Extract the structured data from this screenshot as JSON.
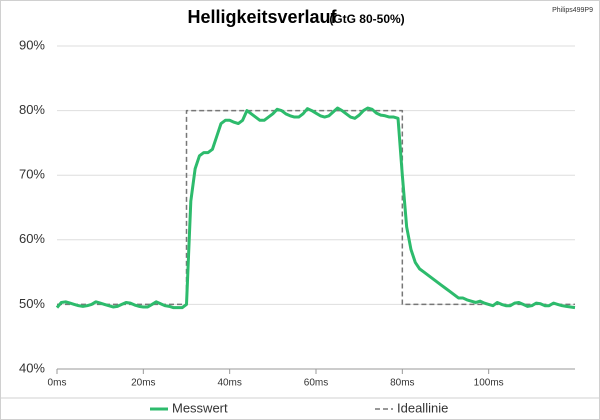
{
  "chart_data": {
    "type": "line",
    "title": "Helligkeitsverlauf",
    "subtitle": "(GtG 80-50%)",
    "annotation": "Philips499P9",
    "xlim": [
      0,
      120
    ],
    "xticks": [
      {
        "value": 0,
        "label": "0ms"
      },
      {
        "value": 20,
        "label": "20ms"
      },
      {
        "value": 40,
        "label": "40ms"
      },
      {
        "value": 60,
        "label": "60ms"
      },
      {
        "value": 80,
        "label": "80ms"
      },
      {
        "value": 100,
        "label": "100ms"
      }
    ],
    "ylim": [
      40,
      90
    ],
    "yticks": [
      {
        "value": 40,
        "label": "40%"
      },
      {
        "value": 50,
        "label": "50%"
      },
      {
        "value": 60,
        "label": "60%"
      },
      {
        "value": 70,
        "label": "70%"
      },
      {
        "value": 80,
        "label": "80%"
      },
      {
        "value": 90,
        "label": "90%"
      }
    ],
    "grid": true,
    "legend": "bottom",
    "series": [
      {
        "name": "Messwert",
        "color": "#2dbb6c",
        "dashed": false,
        "x": [
          0,
          1,
          2,
          3,
          4,
          5,
          6,
          7,
          8,
          9,
          10,
          11,
          12,
          13,
          14,
          15,
          16,
          17,
          18,
          19,
          20,
          21,
          22,
          23,
          24,
          25,
          26,
          27,
          28,
          29,
          30,
          31,
          32,
          33,
          34,
          35,
          36,
          37,
          38,
          39,
          40,
          41,
          42,
          43,
          44,
          45,
          46,
          47,
          48,
          49,
          50,
          51,
          52,
          53,
          54,
          55,
          56,
          57,
          58,
          59,
          60,
          61,
          62,
          63,
          64,
          65,
          66,
          67,
          68,
          69,
          70,
          71,
          72,
          73,
          74,
          75,
          76,
          77,
          78,
          79,
          80,
          81,
          82,
          83,
          84,
          85,
          86,
          87,
          88,
          89,
          90,
          91,
          92,
          93,
          94,
          95,
          96,
          97,
          98,
          99,
          100,
          101,
          102,
          103,
          104,
          105,
          106,
          107,
          108,
          109,
          110,
          111,
          112,
          113,
          114,
          115,
          116,
          117,
          118,
          119,
          120
        ],
        "values": [
          49.5,
          50.3,
          50.4,
          50.2,
          50,
          49.8,
          49.7,
          49.8,
          50,
          50.4,
          50.2,
          50,
          49.8,
          49.6,
          49.7,
          50,
          50.3,
          50.2,
          49.9,
          49.7,
          49.6,
          49.6,
          50,
          50.4,
          50.1,
          49.8,
          49.7,
          49.5,
          49.5,
          49.5,
          50,
          66,
          71,
          73,
          73.5,
          73.5,
          74,
          76,
          78,
          78.5,
          78.5,
          78.2,
          78,
          78.5,
          80,
          79.5,
          79,
          78.5,
          78.5,
          79,
          79.5,
          80.2,
          80,
          79.5,
          79.2,
          79,
          79,
          79.5,
          80.3,
          80,
          79.6,
          79.2,
          79,
          79.2,
          79.8,
          80.4,
          80,
          79.5,
          79,
          78.8,
          79.3,
          80,
          80.4,
          80.2,
          79.6,
          79.3,
          79.2,
          79,
          79,
          78.8,
          70,
          62,
          58.5,
          56.5,
          55.5,
          55,
          54.5,
          54,
          53.5,
          53,
          52.5,
          52,
          51.5,
          51,
          51,
          50.7,
          50.5,
          50.3,
          50.5,
          50.2,
          50,
          49.8,
          50.3,
          50,
          49.8,
          49.8,
          50.2,
          50.3,
          50,
          49.7,
          49.8,
          50.2,
          50.1,
          49.8,
          49.8,
          50.2,
          50,
          49.8,
          49.7,
          49.6,
          49.5
        ]
      },
      {
        "name": "Ideallinie",
        "color": "#777777",
        "dashed": true,
        "x": [
          0,
          30,
          30,
          80,
          80,
          120
        ],
        "values": [
          50,
          50,
          80,
          80,
          50,
          50
        ]
      }
    ]
  }
}
